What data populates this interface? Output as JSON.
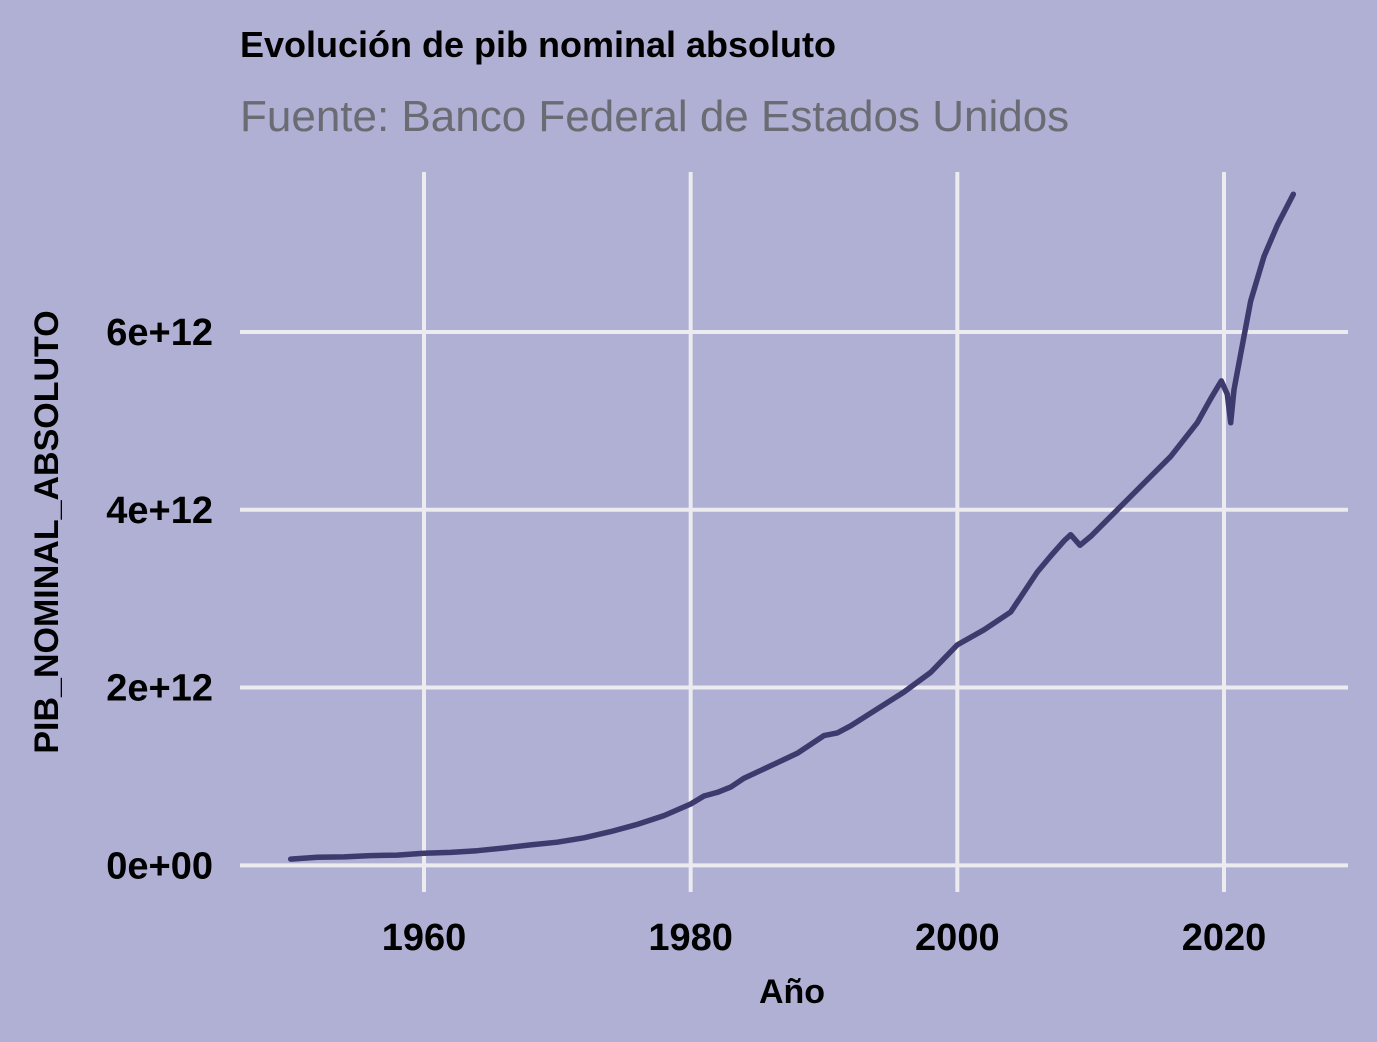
{
  "chart_data": {
    "type": "line",
    "title": "Evolución de pib nominal absoluto",
    "subtitle": "Fuente: Banco Federal de Estados Unidos",
    "xlabel": "Año",
    "ylabel": "PIB_NOMINAL_ABSOLUTO",
    "xlim": [
      1946.2,
      2029.3
    ],
    "ylim": [
      -300000000000,
      7800000000000
    ],
    "x_ticks": [
      1960,
      1980,
      2000,
      2020
    ],
    "x_tick_labels": [
      "1960",
      "1980",
      "2000",
      "2020"
    ],
    "y_ticks": [
      0,
      2000000000000,
      4000000000000,
      6000000000000
    ],
    "y_tick_labels": [
      "0e+00",
      "2e+12",
      "4e+12",
      "6e+12"
    ],
    "grid": true,
    "legend": "none",
    "series": [
      {
        "color": "#3d3b6e",
        "x": [
          1950,
          1952,
          1954,
          1956,
          1958,
          1960,
          1962,
          1964,
          1966,
          1968,
          1970,
          1972,
          1974,
          1976,
          1978,
          1980,
          1981,
          1982,
          1983,
          1984,
          1986,
          1988,
          1990,
          1991,
          1992,
          1994,
          1996,
          1998,
          2000,
          2002,
          2004,
          2006,
          2007,
          2008,
          2008.5,
          2009.2,
          2010,
          2012,
          2014,
          2016,
          2018,
          2019,
          2019.8,
          2020.25,
          2020.5,
          2020.75,
          2021,
          2021.5,
          2022,
          2023,
          2024,
          2025.2
        ],
        "y": [
          70000000000,
          90000000000,
          95000000000,
          110000000000,
          115000000000,
          135000000000,
          145000000000,
          165000000000,
          195000000000,
          230000000000,
          260000000000,
          310000000000,
          380000000000,
          460000000000,
          560000000000,
          690000000000,
          780000000000,
          820000000000,
          880000000000,
          980000000000,
          1120000000000,
          1260000000000,
          1460000000000,
          1490000000000,
          1570000000000,
          1760000000000,
          1950000000000,
          2170000000000,
          2480000000000,
          2650000000000,
          2850000000000,
          3300000000000,
          3480000000000,
          3650000000000,
          3720000000000,
          3600000000000,
          3700000000000,
          4000000000000,
          4300000000000,
          4600000000000,
          4980000000000,
          5250000000000,
          5450000000000,
          5300000000000,
          4980000000000,
          5350000000000,
          5550000000000,
          5950000000000,
          6350000000000,
          6850000000000,
          7200000000000,
          7550000000000
        ]
      }
    ]
  }
}
